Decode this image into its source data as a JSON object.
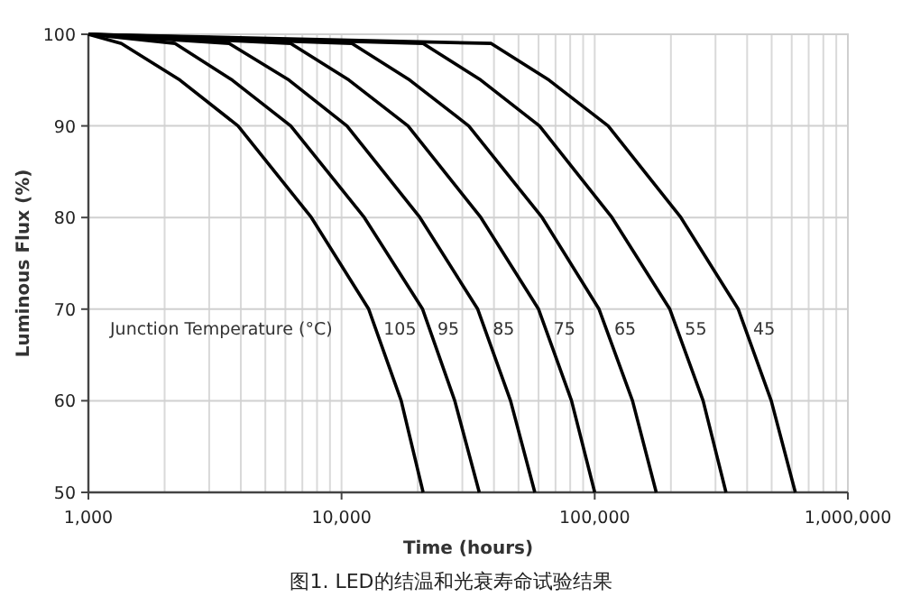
{
  "chart_data": {
    "type": "line",
    "xlabel": "Time (hours)",
    "ylabel": "Luminous Flux (%)",
    "legend_title": "Junction Temperature (°C)",
    "log": "x",
    "grid": true,
    "marker": "none",
    "line_style": "solid",
    "xlim": [
      1000,
      1000000
    ],
    "ylim": [
      50,
      100
    ],
    "xticks": [
      {
        "value": 1000,
        "label": "1,000"
      },
      {
        "value": 10000,
        "label": "10,000"
      },
      {
        "value": 100000,
        "label": "100,000"
      },
      {
        "value": 1000000,
        "label": "1,000,000"
      }
    ],
    "yticks": [
      50,
      60,
      70,
      80,
      90,
      100
    ],
    "series": [
      {
        "name": "105",
        "color": "#000000",
        "x": [
          1000,
          1350,
          2300,
          3900,
          7600,
          12800,
          17200,
          21000
        ],
        "values": [
          100,
          99,
          95,
          90,
          80,
          70,
          60,
          50
        ]
      },
      {
        "name": "95",
        "color": "#000000",
        "x": [
          1000,
          2200,
          3700,
          6300,
          12300,
          20900,
          28000,
          35000
        ],
        "values": [
          100,
          99,
          95,
          90,
          80,
          70,
          60,
          50
        ]
      },
      {
        "name": "85",
        "color": "#000000",
        "x": [
          1000,
          3600,
          6200,
          10500,
          20400,
          34500,
          46500,
          58000
        ],
        "values": [
          100,
          99,
          95,
          90,
          80,
          70,
          60,
          50
        ]
      },
      {
        "name": "75",
        "color": "#000000",
        "x": [
          1000,
          6300,
          10700,
          18300,
          35500,
          60000,
          81000,
          100000
        ],
        "values": [
          100,
          99,
          95,
          90,
          80,
          70,
          60,
          50
        ]
      },
      {
        "name": "65",
        "color": "#000000",
        "x": [
          1000,
          11000,
          18600,
          31800,
          62000,
          104000,
          141000,
          175000
        ],
        "values": [
          100,
          99,
          95,
          90,
          80,
          70,
          60,
          50
        ]
      },
      {
        "name": "55",
        "color": "#000000",
        "x": [
          1000,
          21000,
          35500,
          60500,
          117000,
          198000,
          268000,
          330000
        ],
        "values": [
          100,
          99,
          95,
          90,
          80,
          70,
          60,
          50
        ]
      },
      {
        "name": "45",
        "color": "#000000",
        "x": [
          1000,
          39000,
          66000,
          113000,
          219000,
          369000,
          498000,
          620000
        ],
        "values": [
          100,
          99,
          95,
          90,
          80,
          70,
          60,
          50
        ]
      }
    ],
    "annotations": [
      "图1. LED的结温和光衰寿命试验结果"
    ]
  }
}
